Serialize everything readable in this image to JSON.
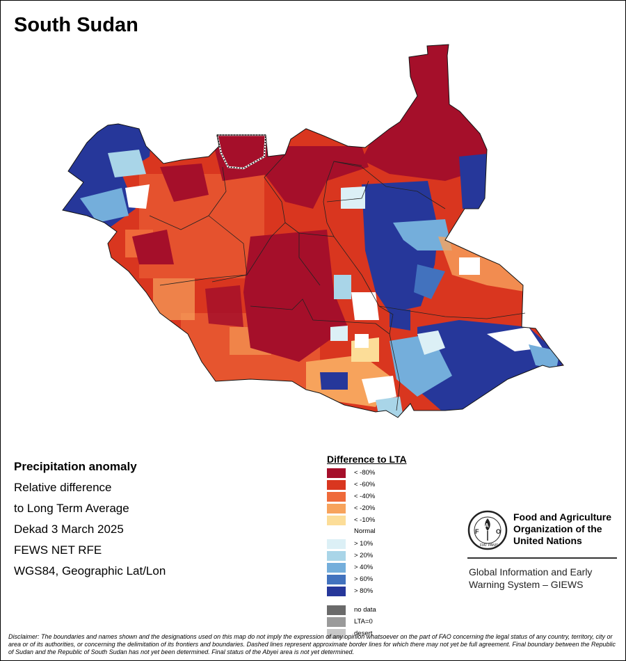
{
  "title": "South Sudan",
  "info": {
    "heading": "Precipitation anomaly",
    "line1": "Relative difference",
    "line2": "to Long Term Average",
    "line3": "Dekad 3 March 2025",
    "line4": "FEWS NET RFE",
    "line5": "WGS84, Geographic Lat/Lon"
  },
  "legend": {
    "title": "Difference to LTA",
    "items": [
      {
        "label": "< -80%",
        "color": "#a50f2a"
      },
      {
        "label": "< -60%",
        "color": "#d9361f"
      },
      {
        "label": "< -40%",
        "color": "#ef6a3a"
      },
      {
        "label": "< -20%",
        "color": "#f7a35c"
      },
      {
        "label": "< -10%",
        "color": "#fcdd98"
      },
      {
        "label": "Normal",
        "color": "#ffffff"
      },
      {
        "label": "> 10%",
        "color": "#dcf0f6"
      },
      {
        "label": "> 20%",
        "color": "#a9d5e8"
      },
      {
        "label": "> 40%",
        "color": "#74aedb"
      },
      {
        "label": "> 60%",
        "color": "#4272be"
      },
      {
        "label": "> 80%",
        "color": "#26379a"
      }
    ],
    "extra": [
      {
        "label": "no data",
        "color": "#6a6a6a"
      },
      {
        "label": "LTA=0",
        "color": "#9a9a9a"
      },
      {
        "label": "desert",
        "color": "#c8c8c8"
      }
    ]
  },
  "fao": {
    "name_line1": "Food and Agriculture",
    "name_line2": "Organization of the",
    "name_line3": "United Nations",
    "giews_line1": "Global Information and Early",
    "giews_line2": "Warning System – GIEWS",
    "logo_text": "FAO",
    "logo_motto": "FIAT PANIS"
  },
  "disclaimer": "Disclaimer: The boundaries and names shown and the designations used on this map do not imply the expression of any opinion whatsoever on the part of FAO concerning the legal status of any country, territory, city or area or of its authorities, or concerning the delimitation of its frontiers and boundaries. Dashed lines represent approximate border lines for which there may not yet be full agreement. Final boundary between the Republic of Sudan and the Republic of South Sudan has not yet been determined. Final status of the Abyei area is not yet determined."
}
